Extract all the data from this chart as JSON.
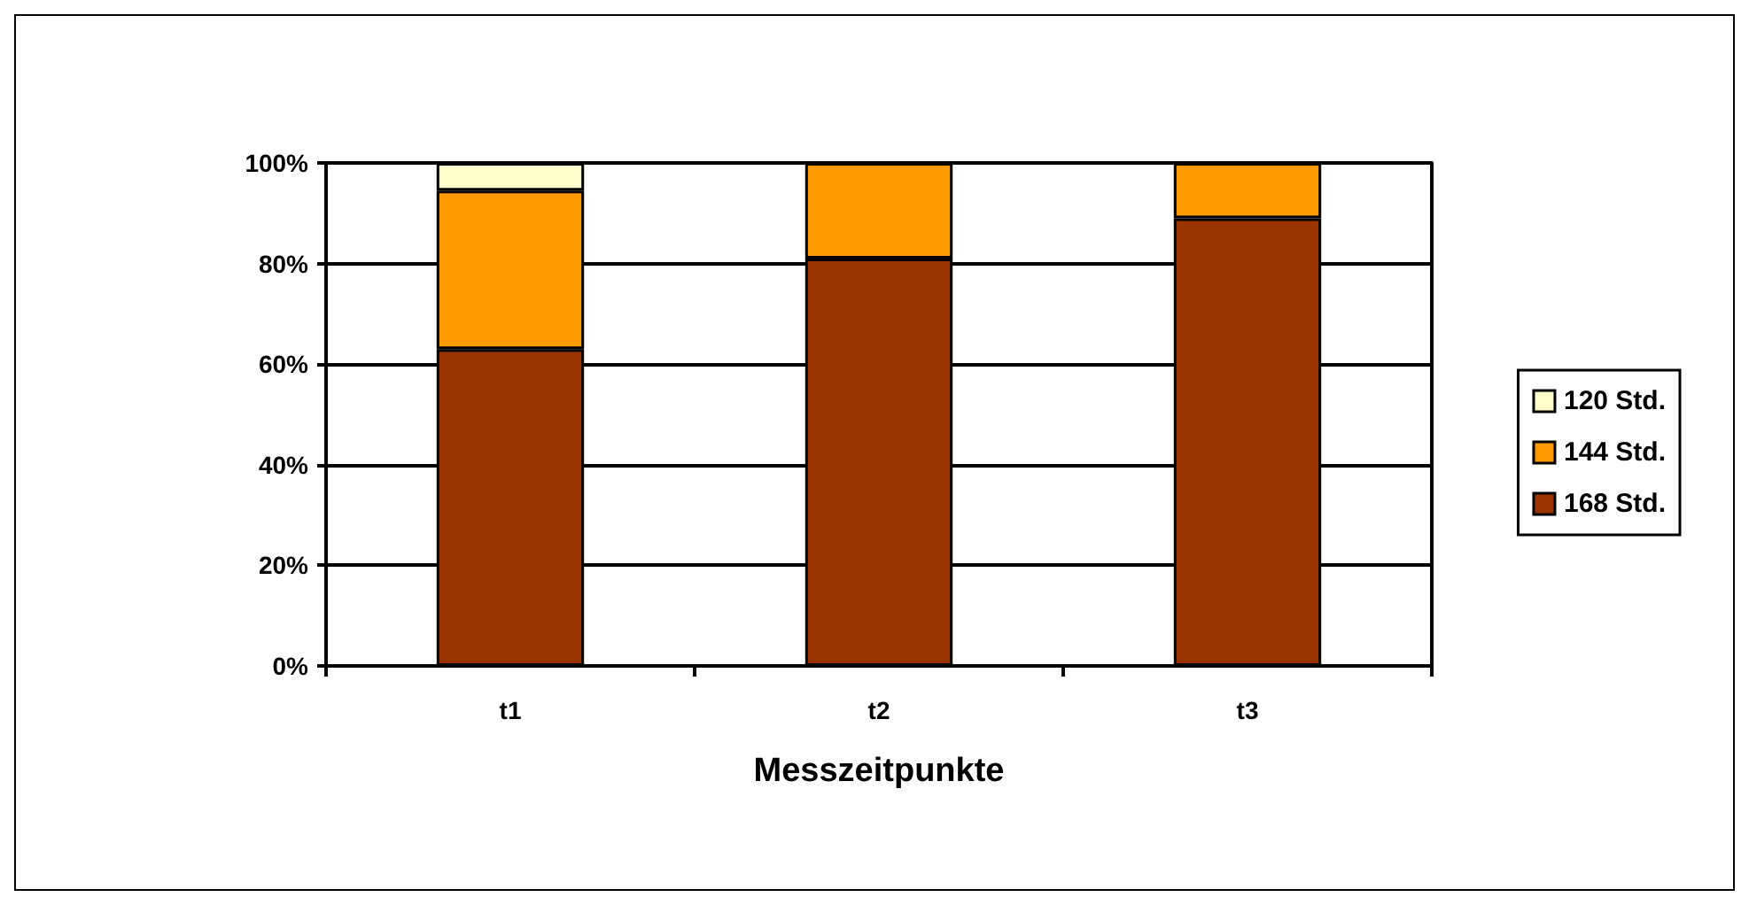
{
  "chart_data": {
    "type": "bar",
    "stacked": true,
    "xlabel": "Messzeitpunkte",
    "categories": [
      "t1",
      "t2",
      "t3"
    ],
    "series": [
      {
        "name": "168 Std.",
        "color": "#993300",
        "values": [
          63,
          81,
          89
        ]
      },
      {
        "name": "144 Std.",
        "color": "#ff9900",
        "values": [
          31.5,
          19,
          11
        ]
      },
      {
        "name": "120 Std.",
        "color": "#ffffcc",
        "values": [
          5.5,
          null,
          null
        ]
      }
    ],
    "ylim": [
      0,
      100
    ],
    "yticks": [
      {
        "value": 0,
        "label": "0%"
      },
      {
        "value": 20,
        "label": "20%"
      },
      {
        "value": 40,
        "label": "40%"
      },
      {
        "value": 60,
        "label": "60%"
      },
      {
        "value": 80,
        "label": "80%"
      },
      {
        "value": 100,
        "label": "100%"
      }
    ],
    "grid": "y",
    "legend": "right"
  }
}
